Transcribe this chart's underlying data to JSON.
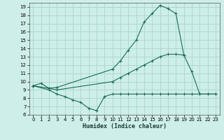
{
  "xlabel": "Humidex (Indice chaleur)",
  "background_color": "#ceeee9",
  "grid_color": "#aed8d3",
  "line_color": "#1a6b5a",
  "xlim": [
    -0.5,
    23.5
  ],
  "ylim": [
    6,
    19.5
  ],
  "xticks": [
    0,
    1,
    2,
    3,
    4,
    5,
    6,
    7,
    8,
    9,
    10,
    11,
    12,
    13,
    14,
    15,
    16,
    17,
    18,
    19,
    20,
    21,
    22,
    23
  ],
  "yticks": [
    6,
    7,
    8,
    9,
    10,
    11,
    12,
    13,
    14,
    15,
    16,
    17,
    18,
    19
  ],
  "series": [
    {
      "x": [
        0,
        1,
        2,
        3,
        10,
        11,
        12,
        13,
        14,
        15,
        16,
        17,
        18,
        19
      ],
      "y": [
        9.5,
        9.8,
        9.2,
        9.3,
        11.5,
        12.5,
        13.8,
        15.0,
        17.2,
        18.2,
        19.2,
        18.8,
        18.2,
        13.2
      ]
    },
    {
      "x": [
        0,
        2,
        3,
        10,
        11,
        12,
        13,
        14,
        15,
        16,
        17,
        18,
        19,
        20,
        21,
        22,
        23
      ],
      "y": [
        9.5,
        9.2,
        9.0,
        10.0,
        10.5,
        11.0,
        11.5,
        12.0,
        12.5,
        13.0,
        13.3,
        13.3,
        13.2,
        11.2,
        8.5,
        8.5,
        8.5
      ]
    },
    {
      "x": [
        0,
        2,
        3,
        4,
        5,
        6,
        7,
        8,
        9,
        10,
        11,
        12,
        13,
        14,
        15,
        16,
        17,
        18,
        19,
        20,
        21,
        22,
        23
      ],
      "y": [
        9.5,
        9.0,
        8.5,
        8.2,
        7.8,
        7.5,
        6.8,
        6.5,
        8.2,
        8.5,
        8.5,
        8.5,
        8.5,
        8.5,
        8.5,
        8.5,
        8.5,
        8.5,
        8.5,
        8.5,
        8.5,
        8.5,
        8.5
      ]
    }
  ]
}
